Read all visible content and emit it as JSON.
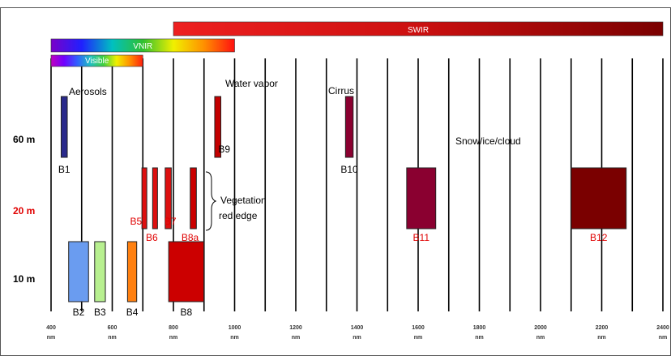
{
  "colors": {
    "frame": "#555555",
    "gridline": "#000000",
    "label_black": "#000000",
    "label_red": "#e00000",
    "swir_dark": "#7a0000",
    "swir_bright": "#ee2020"
  },
  "axis": {
    "unit": "nm",
    "min_nm": 400,
    "max_nm": 2400,
    "ticks": [
      400,
      600,
      800,
      1000,
      1200,
      1400,
      1600,
      1800,
      2000,
      2200,
      2400
    ]
  },
  "resolutions": [
    {
      "label": "60 m",
      "color": "#000000"
    },
    {
      "label": "20 m",
      "color": "#e00000"
    },
    {
      "label": "10 m",
      "color": "#000000"
    }
  ],
  "ranges": [
    {
      "label": "SWIR",
      "start_nm": 800,
      "end_nm": 2400,
      "gradient": [
        "#ee2020",
        "#cc1010",
        "#7a0000"
      ]
    },
    {
      "label": "VNIR",
      "start_nm": 400,
      "end_nm": 1000,
      "gradient": [
        "#7a00c8",
        "#2020ff",
        "#00c0c0",
        "#30c030",
        "#f0f000",
        "#ff9000",
        "#ff1010"
      ]
    },
    {
      "label": "Visible",
      "start_nm": 400,
      "end_nm": 700,
      "gradient": [
        "#c000c0",
        "#7000ff",
        "#3060ff",
        "#20c0c0",
        "#40d040",
        "#f0f000",
        "#ff9000",
        "#ff2010"
      ]
    }
  ],
  "bands": [
    {
      "id": "b1",
      "label": "B1",
      "center_nm": 443,
      "width_nm": 20,
      "resolution": "60 m",
      "color": "#2a2a8c",
      "label_color": "#000000"
    },
    {
      "id": "b2",
      "label": "B2",
      "center_nm": 490,
      "width_nm": 65,
      "resolution": "10 m",
      "color": "#6a9cf0",
      "label_color": "#000000"
    },
    {
      "id": "b3",
      "label": "B3",
      "center_nm": 560,
      "width_nm": 35,
      "resolution": "10 m",
      "color": "#b8f090",
      "label_color": "#000000"
    },
    {
      "id": "b4",
      "label": "B4",
      "center_nm": 665,
      "width_nm": 30,
      "resolution": "10 m",
      "color": "#ff8010",
      "label_color": "#000000"
    },
    {
      "id": "b5",
      "label": "B5",
      "center_nm": 705,
      "width_nm": 15,
      "resolution": "20 m",
      "color": "#dd1010",
      "label_color": "#e00000"
    },
    {
      "id": "b6",
      "label": "B6",
      "center_nm": 740,
      "width_nm": 15,
      "resolution": "20 m",
      "color": "#dd1010",
      "label_color": "#e00000"
    },
    {
      "id": "b7",
      "label": "B7",
      "center_nm": 783,
      "width_nm": 20,
      "resolution": "20 m",
      "color": "#dd1010",
      "label_color": "#e00000"
    },
    {
      "id": "b8",
      "label": "B8",
      "center_nm": 842,
      "width_nm": 115,
      "resolution": "10 m",
      "color": "#cc0000",
      "label_color": "#000000"
    },
    {
      "id": "b8a",
      "label": "B8a",
      "center_nm": 865,
      "width_nm": 20,
      "resolution": "20 m",
      "color": "#cc0000",
      "label_color": "#e00000"
    },
    {
      "id": "b9",
      "label": "B9",
      "center_nm": 945,
      "width_nm": 20,
      "resolution": "60 m",
      "color": "#c40000",
      "label_color": "#000000"
    },
    {
      "id": "b10",
      "label": "B10",
      "center_nm": 1375,
      "width_nm": 25,
      "resolution": "60 m",
      "color": "#8a0030",
      "label_color": "#000000"
    },
    {
      "id": "b11",
      "label": "B11",
      "center_nm": 1610,
      "width_nm": 95,
      "resolution": "20 m",
      "color": "#8a0030",
      "label_color": "#e00000"
    },
    {
      "id": "b12",
      "label": "B12",
      "center_nm": 2190,
      "width_nm": 180,
      "resolution": "20 m",
      "color": "#7a0000",
      "label_color": "#e00000"
    }
  ],
  "annotations": {
    "aerosols": "Aerosols",
    "water_vapor": "Water vapor",
    "cirrus": "Cirrus",
    "snow": "Snow/ice/cloud",
    "vegetation_line1": "Vegetation",
    "vegetation_line2": "red edge"
  }
}
